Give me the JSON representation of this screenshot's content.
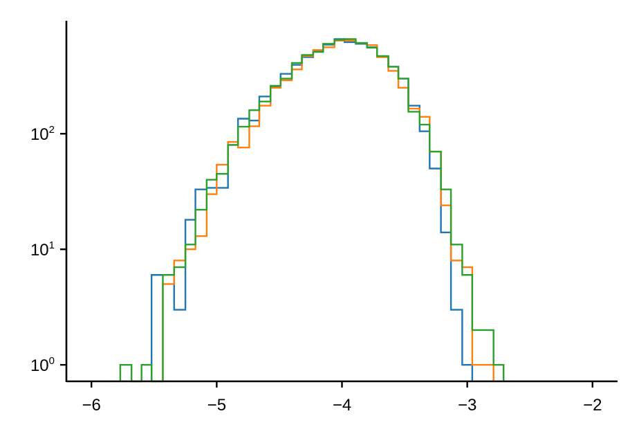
{
  "chart_data": {
    "type": "histogram",
    "title": "",
    "xlabel": "",
    "ylabel": "",
    "x_scale": "linear",
    "y_scale": "log",
    "xlim": [
      -6.2,
      -1.8
    ],
    "ylim": [
      0.72,
      950
    ],
    "x_ticks": [
      {
        "value": -6,
        "label": "−6"
      },
      {
        "value": -5,
        "label": "−5"
      },
      {
        "value": -4,
        "label": "−4"
      },
      {
        "value": -3,
        "label": "−3"
      },
      {
        "value": -2,
        "label": "−2"
      }
    ],
    "y_ticks": [
      {
        "value": 1,
        "base": "10",
        "exp": "0"
      },
      {
        "value": 10,
        "base": "10",
        "exp": "1"
      },
      {
        "value": 100,
        "base": "10",
        "exp": "2"
      }
    ],
    "grid": false,
    "legend": "none",
    "histtype": "step",
    "series": [
      {
        "color": "#1f77b4",
        "bin_edges": [
          -5.52,
          -5.43,
          -5.34,
          -5.25,
          -5.17,
          -5.08,
          -5.0,
          -4.91,
          -4.83,
          -4.74,
          -4.66,
          -4.57,
          -4.49,
          -4.4,
          -4.32,
          -4.23,
          -4.15,
          -4.06,
          -3.98,
          -3.89,
          -3.8,
          -3.72,
          -3.63,
          -3.55,
          -3.47,
          -3.38,
          -3.3,
          -3.21,
          -3.13,
          -3.04,
          -2.96
        ],
        "counts": [
          6,
          6,
          3,
          18,
          33,
          34,
          34,
          80,
          135,
          130,
          210,
          255,
          330,
          395,
          460,
          520,
          590,
          660,
          620,
          600,
          560,
          470,
          380,
          300,
          175,
          105,
          50,
          14,
          3,
          1
        ]
      },
      {
        "color": "#ff7f0e",
        "bin_edges": [
          -5.43,
          -5.34,
          -5.25,
          -5.17,
          -5.08,
          -5.0,
          -4.91,
          -4.83,
          -4.74,
          -4.66,
          -4.57,
          -4.49,
          -4.4,
          -4.32,
          -4.23,
          -4.15,
          -4.06,
          -3.98,
          -3.89,
          -3.8,
          -3.72,
          -3.63,
          -3.55,
          -3.47,
          -3.38,
          -3.3,
          -3.21,
          -3.13,
          -3.04,
          -2.96,
          -2.87,
          -2.79
        ],
        "counts": [
          5,
          8,
          10,
          13,
          30,
          54,
          85,
          76,
          116,
          175,
          250,
          290,
          360,
          470,
          530,
          560,
          640,
          640,
          610,
          585,
          460,
          350,
          250,
          165,
          140,
          70,
          24,
          8,
          7,
          1,
          1
        ]
      },
      {
        "color": "#2ca02c",
        "bin_edges": [
          -5.77,
          -5.68,
          -5.6,
          -5.52,
          -5.43,
          -5.34,
          -5.25,
          -5.17,
          -5.08,
          -5.0,
          -4.91,
          -4.83,
          -4.74,
          -4.66,
          -4.57,
          -4.49,
          -4.4,
          -4.32,
          -4.23,
          -4.15,
          -4.06,
          -3.98,
          -3.89,
          -3.8,
          -3.72,
          -3.63,
          -3.55,
          -3.47,
          -3.38,
          -3.3,
          -3.21,
          -3.13,
          -3.04,
          -2.96,
          -2.87,
          -2.79,
          -2.71
        ],
        "counts": [
          1,
          0,
          1,
          0,
          6,
          7,
          11,
          22,
          40,
          45,
          80,
          115,
          160,
          190,
          260,
          300,
          410,
          480,
          510,
          600,
          650,
          660,
          610,
          555,
          470,
          380,
          300,
          155,
          120,
          70,
          33,
          11,
          6,
          2,
          2,
          1
        ]
      }
    ]
  }
}
